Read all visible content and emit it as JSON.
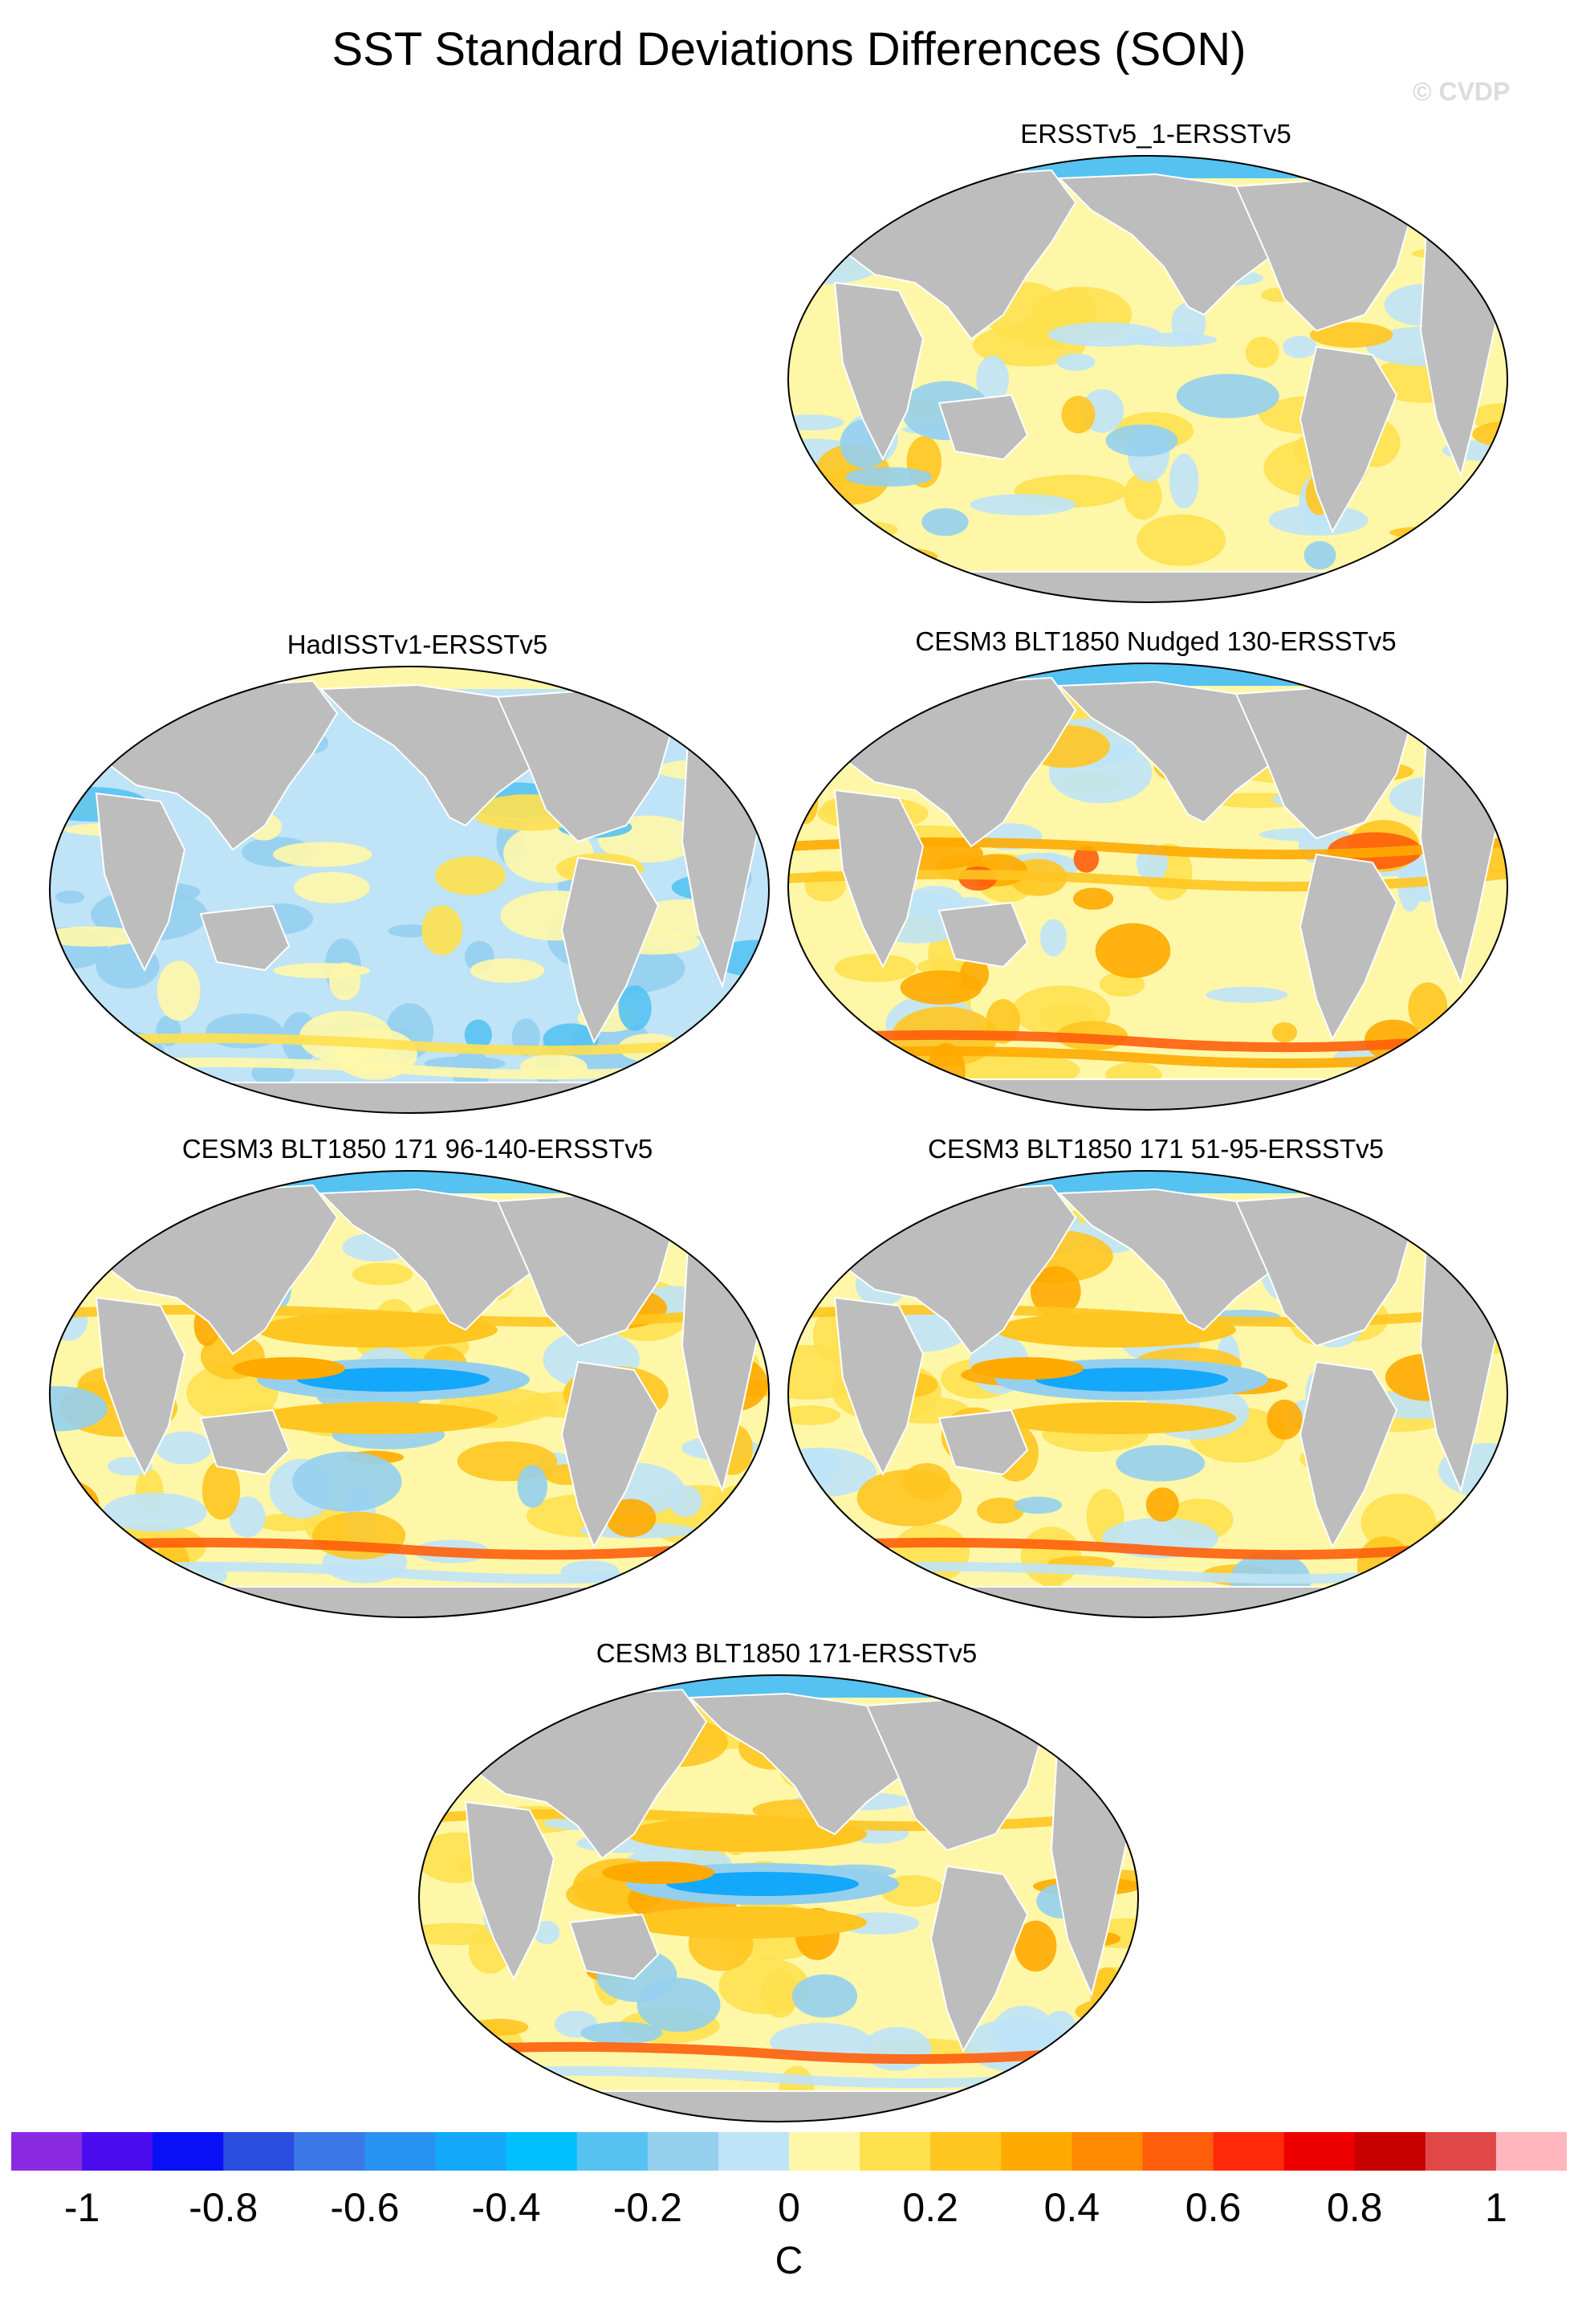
{
  "title": "SST Standard Deviations Differences (SON)",
  "watermark": "© CVDP",
  "panels": [
    {
      "title": "ERSSTv5_1-ERSSTv5",
      "pattern": "weak-warm"
    },
    {
      "title": "HadISSTv1-ERSSTv5",
      "pattern": "weak-cool"
    },
    {
      "title": "CESM3 BLT1850 Nudged 130-ERSSTv5",
      "pattern": "strong-warm"
    },
    {
      "title": "CESM3 BLT1850 171 96-140-ERSSTv5",
      "pattern": "enso-cool"
    },
    {
      "title": "CESM3 BLT1850 171 51-95-ERSSTv5",
      "pattern": "enso-cool"
    },
    {
      "title": "CESM3 BLT1850 171-ERSSTv5",
      "pattern": "enso-cool"
    }
  ],
  "colorbar": {
    "labels": [
      "-1",
      "-0.8",
      "-0.6",
      "-0.4",
      "-0.2",
      "0",
      "0.2",
      "0.4",
      "0.6",
      "0.8",
      "1"
    ],
    "unit": "C",
    "colors": [
      "#8a2be2",
      "#4b0cf0",
      "#0a10f5",
      "#2a4fe0",
      "#3a78e8",
      "#2892f2",
      "#14a8fa",
      "#00c0ff",
      "#55c2f2",
      "#95cfee",
      "#bfe3f7",
      "#fff7a8",
      "#ffe04f",
      "#ffc521",
      "#ffaa00",
      "#ff8a00",
      "#ff5e0a",
      "#ff2a0a",
      "#ef0000",
      "#c80000",
      "#e04848",
      "#ffb6bc"
    ]
  },
  "land_color": "#bdbdbd"
}
